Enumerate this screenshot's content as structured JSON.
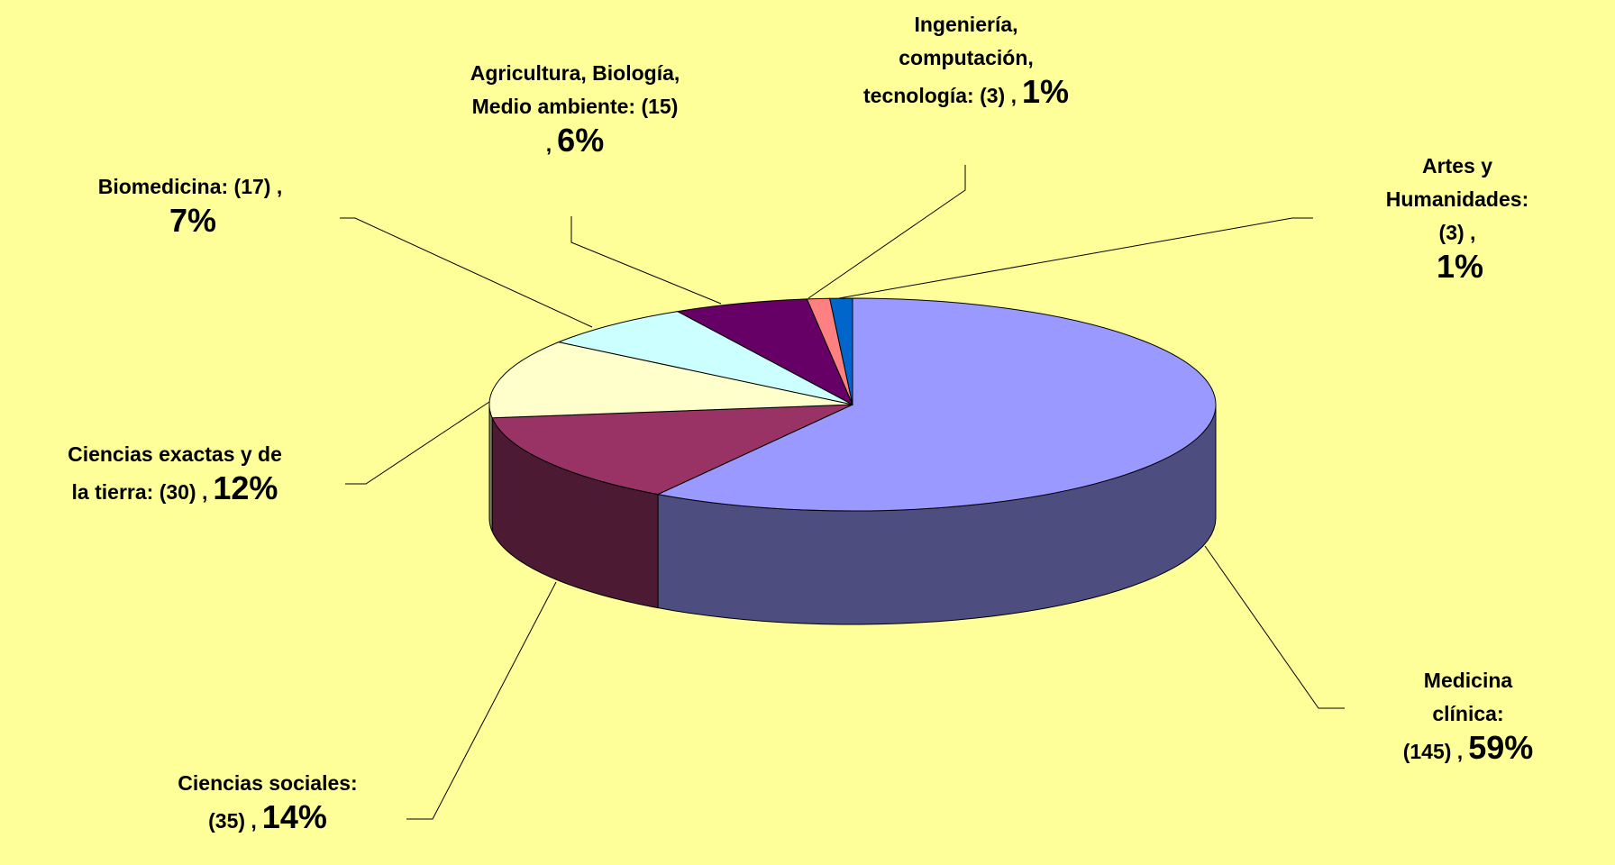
{
  "chart_data": {
    "type": "pie3d",
    "categories": [
      "Medicina clínica:\n(145) ,",
      "Ciencias sociales:\n(35) ,",
      "Ciencias exactas y de\nla tierra: (30) ,",
      "Biomedicina: (17) ,\n",
      "Agricultura, Biología,\nMedio ambiente: (15)\n,",
      "Ingeniería,\ncomputación,\ntecnología: (3) ,",
      "Artes y\nHumanidades: (3) ,\n"
    ],
    "values": [
      59,
      14,
      12,
      7,
      6,
      1,
      1
    ],
    "value_labels": [
      "59%",
      "14%",
      "12%",
      "7%",
      "6%",
      "1%",
      "1%"
    ],
    "colors": [
      "#9999ff",
      "#993366",
      "#ffffcc",
      "#ccffff",
      "#660066",
      "#ff8080",
      "#0066cc"
    ]
  }
}
